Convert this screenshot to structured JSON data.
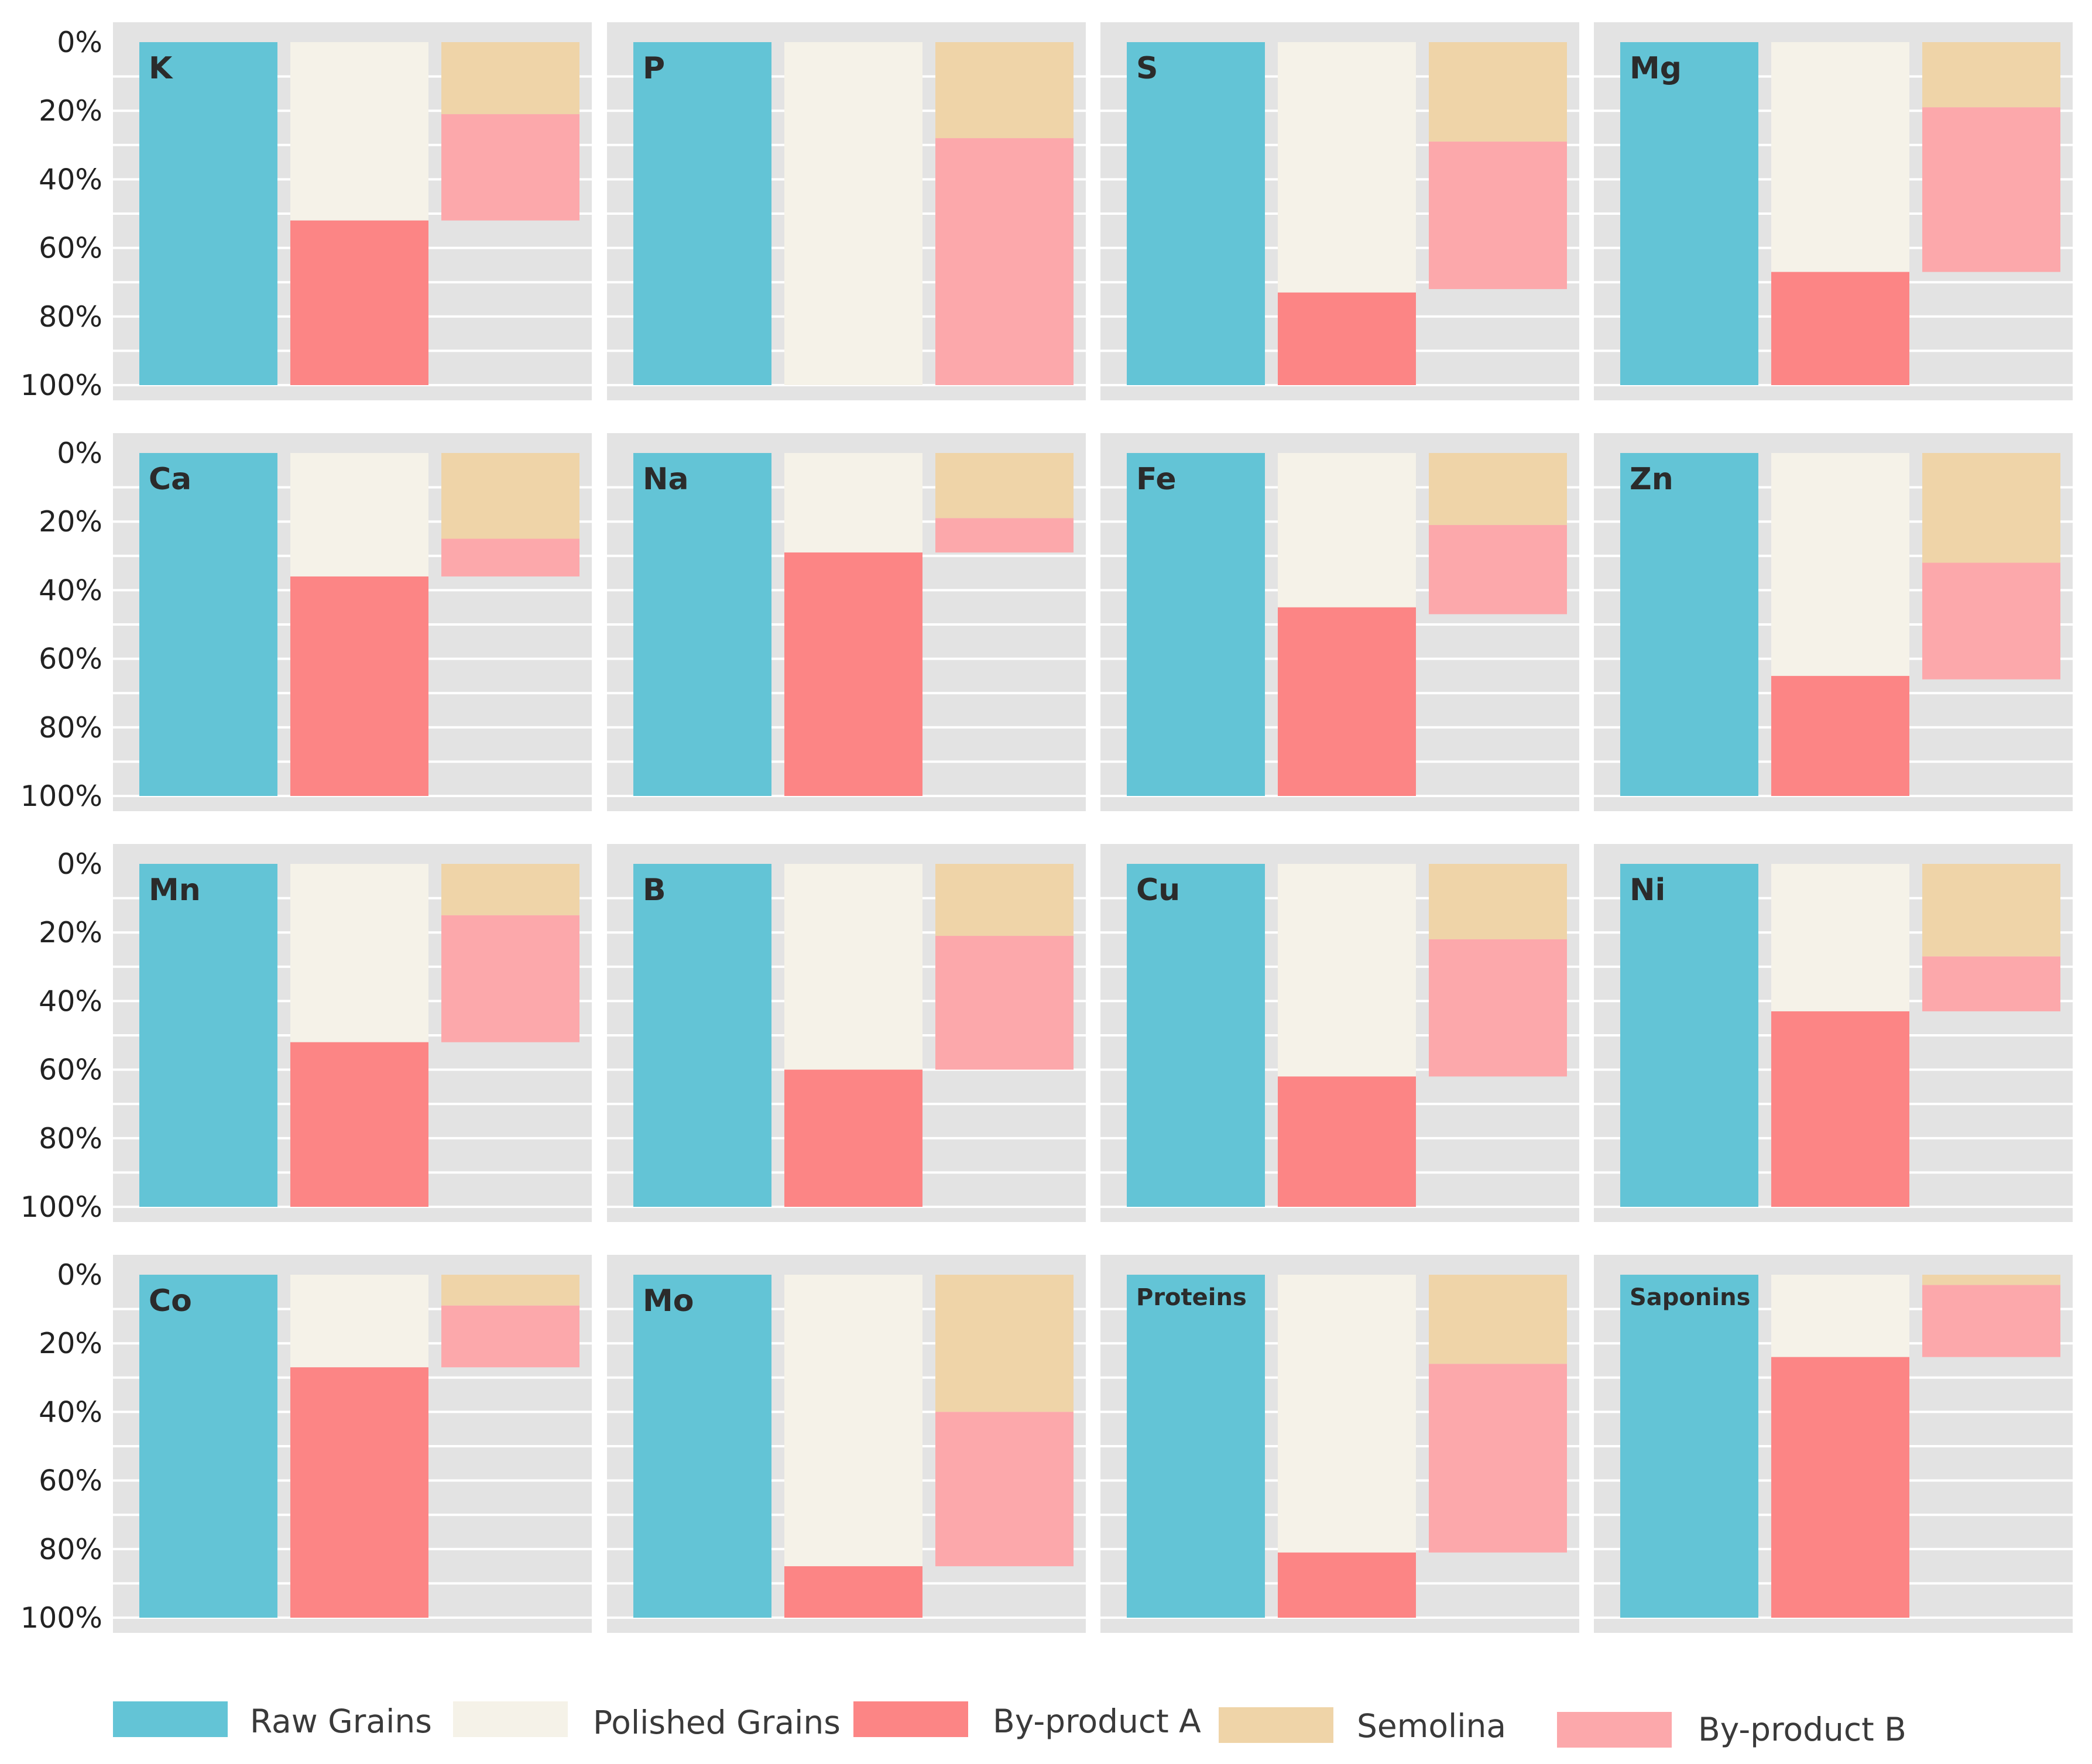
{
  "chart_data": {
    "type": "bar",
    "subtype": "faceted-stacked-bar-percent",
    "y_axis": {
      "ticks": [
        "0%",
        "20%",
        "40%",
        "60%",
        "80%",
        "100%"
      ],
      "ylim": [
        0,
        100
      ],
      "direction": "top-to-bottom",
      "grid": true
    },
    "bars": [
      {
        "name": "Raw Grains",
        "segments": [
          "Raw Grains"
        ]
      },
      {
        "name": "Polished Grains + By-product A",
        "segments": [
          "Polished Grains",
          "By-product A"
        ]
      },
      {
        "name": "Semolina + By-product B",
        "segments": [
          "Semolina",
          "By-product B"
        ]
      }
    ],
    "series": [
      {
        "name": "Raw Grains",
        "color": "#63c4d6"
      },
      {
        "name": "Polished Grains",
        "color": "#f5f2e8"
      },
      {
        "name": "By-product A",
        "color": "#fc8585"
      },
      {
        "name": "Semolina",
        "color": "#efd4a8"
      },
      {
        "name": "By-product B",
        "color": "#fca8ab"
      }
    ],
    "legend": {
      "position": "bottom"
    },
    "panels": [
      {
        "label": "K",
        "values": {
          "Raw Grains": 100,
          "Polished Grains": 52,
          "By-product A": 48,
          "Semolina": 21,
          "By-product B": 31
        }
      },
      {
        "label": "P",
        "values": {
          "Raw Grains": 100,
          "Polished Grains": 100,
          "By-product A": 0,
          "Semolina": 28,
          "By-product B": 72
        }
      },
      {
        "label": "S",
        "values": {
          "Raw Grains": 100,
          "Polished Grains": 73,
          "By-product A": 27,
          "Semolina": 29,
          "By-product B": 43
        }
      },
      {
        "label": "Mg",
        "values": {
          "Raw Grains": 100,
          "Polished Grains": 67,
          "By-product A": 33,
          "Semolina": 19,
          "By-product B": 48
        }
      },
      {
        "label": "Ca",
        "values": {
          "Raw Grains": 100,
          "Polished Grains": 36,
          "By-product A": 64,
          "Semolina": 25,
          "By-product B": 11
        }
      },
      {
        "label": "Na",
        "values": {
          "Raw Grains": 100,
          "Polished Grains": 29,
          "By-product A": 71,
          "Semolina": 19,
          "By-product B": 10
        }
      },
      {
        "label": "Fe",
        "values": {
          "Raw Grains": 100,
          "Polished Grains": 45,
          "By-product A": 55,
          "Semolina": 21,
          "By-product B": 26
        }
      },
      {
        "label": "Zn",
        "values": {
          "Raw Grains": 100,
          "Polished Grains": 65,
          "By-product A": 35,
          "Semolina": 32,
          "By-product B": 34
        }
      },
      {
        "label": "Mn",
        "values": {
          "Raw Grains": 100,
          "Polished Grains": 52,
          "By-product A": 48,
          "Semolina": 15,
          "By-product B": 37
        }
      },
      {
        "label": "B",
        "values": {
          "Raw Grains": 100,
          "Polished Grains": 60,
          "By-product A": 40,
          "Semolina": 21,
          "By-product B": 39
        }
      },
      {
        "label": "Cu",
        "values": {
          "Raw Grains": 100,
          "Polished Grains": 62,
          "By-product A": 38,
          "Semolina": 22,
          "By-product B": 40
        }
      },
      {
        "label": "Ni",
        "values": {
          "Raw Grains": 100,
          "Polished Grains": 43,
          "By-product A": 57,
          "Semolina": 27,
          "By-product B": 16
        }
      },
      {
        "label": "Co",
        "values": {
          "Raw Grains": 100,
          "Polished Grains": 27,
          "By-product A": 73,
          "Semolina": 9,
          "By-product B": 18
        }
      },
      {
        "label": "Mo",
        "values": {
          "Raw Grains": 100,
          "Polished Grains": 85,
          "By-product A": 15,
          "Semolina": 40,
          "By-product B": 45
        }
      },
      {
        "label": "Proteins",
        "values": {
          "Raw Grains": 100,
          "Polished Grains": 81,
          "By-product A": 19,
          "Semolina": 26,
          "By-product B": 55
        }
      },
      {
        "label": "Saponins",
        "values": {
          "Raw Grains": 100,
          "Polished Grains": 24,
          "By-product A": 76,
          "Semolina": 3,
          "By-product B": 21
        }
      }
    ]
  }
}
